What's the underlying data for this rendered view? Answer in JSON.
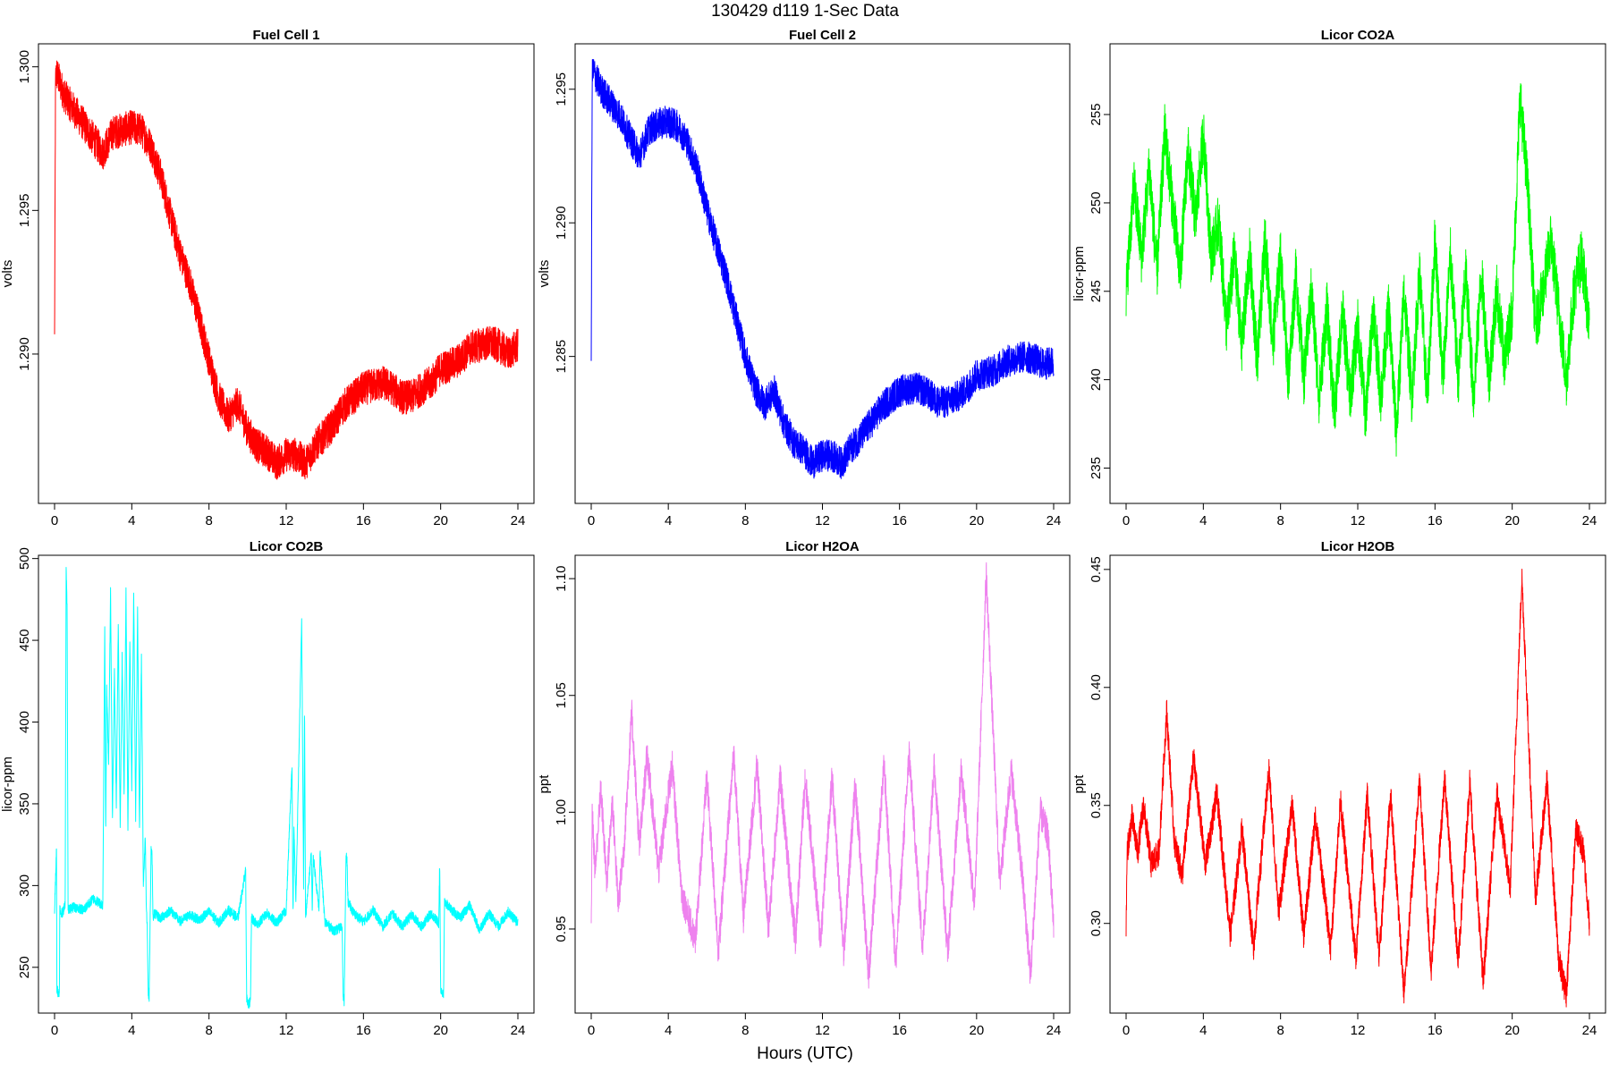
{
  "figure": {
    "title": "130429   d119   1-Sec Data",
    "xlabel": "Hours (UTC)"
  },
  "chart_data": [
    {
      "type": "line",
      "title": "Fuel Cell 1",
      "ylabel": "volts",
      "color": "#ff0000",
      "xlim": [
        0,
        24
      ],
      "xticks": [
        0,
        4,
        8,
        12,
        16,
        20,
        24
      ],
      "ylim": [
        1.2848,
        1.3008
      ],
      "yticks": [
        1.29,
        1.295,
        1.3
      ],
      "ytick_labels": [
        "1.290",
        "1.295",
        "1.300"
      ],
      "noise": 0.0006,
      "series": [
        {
          "x": [
            0,
            0.05,
            0.1,
            0.5,
            1,
            1.5,
            2,
            2.5,
            3,
            3.5,
            4,
            4.5,
            5,
            5.5,
            6,
            6.5,
            7,
            7.5,
            8,
            8.5,
            9,
            9.5,
            10,
            10.5,
            11,
            11.5,
            12,
            12.5,
            13,
            13.5,
            14,
            14.5,
            15,
            15.5,
            16,
            16.5,
            17,
            17.5,
            18,
            18.5,
            19,
            19.5,
            20,
            20.5,
            21,
            21.5,
            22,
            22.5,
            23,
            23.5,
            24
          ],
          "y": [
            1.2905,
            1.2995,
            1.2998,
            1.299,
            1.2985,
            1.298,
            1.2975,
            1.297,
            1.2977,
            1.2978,
            1.2979,
            1.2978,
            1.2972,
            1.2962,
            1.2948,
            1.2935,
            1.2925,
            1.2912,
            1.2898,
            1.2885,
            1.2878,
            1.2883,
            1.2873,
            1.2868,
            1.2866,
            1.2862,
            1.2865,
            1.2865,
            1.2862,
            1.2868,
            1.2872,
            1.2876,
            1.2882,
            1.2885,
            1.2888,
            1.2889,
            1.289,
            1.2888,
            1.2885,
            1.2885,
            1.2888,
            1.289,
            1.2895,
            1.2896,
            1.2898,
            1.2902,
            1.2903,
            1.2904,
            1.2903,
            1.29,
            1.2903
          ]
        }
      ]
    },
    {
      "type": "line",
      "title": "Fuel Cell 2",
      "ylabel": "volts",
      "color": "#0000ff",
      "xlim": [
        0,
        24
      ],
      "xticks": [
        0,
        4,
        8,
        12,
        16,
        20,
        24
      ],
      "ylim": [
        1.2795,
        1.2967
      ],
      "yticks": [
        1.285,
        1.29,
        1.295
      ],
      "ytick_labels": [
        "1.285",
        "1.290",
        "1.295"
      ],
      "noise": 0.0006,
      "series": [
        {
          "x": [
            0,
            0.05,
            0.1,
            0.5,
            1,
            1.5,
            2,
            2.5,
            3,
            3.5,
            4,
            4.5,
            5,
            5.5,
            6,
            6.5,
            7,
            7.5,
            8,
            8.5,
            9,
            9.5,
            10,
            10.5,
            11,
            11.5,
            12,
            12.5,
            13,
            13.5,
            14,
            14.5,
            15,
            15.5,
            16,
            16.5,
            17,
            17.5,
            18,
            18.5,
            19,
            19.5,
            20,
            20.5,
            21,
            21.5,
            22,
            22.5,
            23,
            23.5,
            24
          ],
          "y": [
            1.2848,
            1.2955,
            1.2957,
            1.295,
            1.2945,
            1.294,
            1.2932,
            1.2925,
            1.2935,
            1.2937,
            1.2938,
            1.2936,
            1.293,
            1.292,
            1.2905,
            1.2892,
            1.288,
            1.2865,
            1.285,
            1.2838,
            1.2832,
            1.2837,
            1.2825,
            1.2818,
            1.2815,
            1.281,
            1.2813,
            1.2813,
            1.281,
            1.2816,
            1.282,
            1.2825,
            1.283,
            1.2834,
            1.2837,
            1.2838,
            1.2838,
            1.2836,
            1.2833,
            1.2833,
            1.2835,
            1.2838,
            1.2843,
            1.2844,
            1.2845,
            1.2848,
            1.2849,
            1.285,
            1.2849,
            1.2847,
            1.2848
          ]
        }
      ]
    },
    {
      "type": "line",
      "title": "Licor CO2A",
      "ylabel": "licor-ppm",
      "color": "#00ff00",
      "xlim": [
        0,
        24
      ],
      "xticks": [
        0,
        4,
        8,
        12,
        16,
        20,
        24
      ],
      "ylim": [
        233,
        259
      ],
      "yticks": [
        235,
        240,
        245,
        250,
        255
      ],
      "ytick_labels": [
        "235",
        "240",
        "245",
        "250",
        "255"
      ],
      "noise": 1.6,
      "series": [
        {
          "x": [
            0,
            0.4,
            0.8,
            1.2,
            1.6,
            2,
            2.4,
            2.8,
            3.2,
            3.6,
            4,
            4.4,
            4.8,
            5.2,
            5.6,
            6,
            6.4,
            6.8,
            7.2,
            7.6,
            8,
            8.4,
            8.8,
            9.2,
            9.6,
            10,
            10.4,
            10.8,
            11.2,
            11.6,
            12,
            12.4,
            12.8,
            13.2,
            13.6,
            14,
            14.4,
            14.8,
            15.2,
            15.6,
            16,
            16.4,
            16.8,
            17.2,
            17.6,
            18,
            18.4,
            18.8,
            19.2,
            19.6,
            20,
            20.4,
            20.8,
            21.2,
            21.6,
            22,
            22.4,
            22.8,
            23.2,
            23.6,
            24
          ],
          "y": [
            245,
            251,
            247,
            252,
            246,
            254,
            250,
            246,
            253,
            249,
            254,
            247,
            249,
            243,
            247,
            242,
            247,
            241,
            248,
            242,
            247,
            240,
            246,
            240,
            245,
            239,
            244,
            238,
            244,
            239,
            243,
            238,
            244,
            239,
            244,
            237,
            245,
            239,
            246,
            239,
            248,
            240,
            247,
            240,
            246,
            239,
            246,
            240,
            245,
            241,
            244,
            256,
            251,
            243,
            245,
            248,
            244,
            240,
            245,
            247,
            243
          ]
        }
      ]
    },
    {
      "type": "line",
      "title": "Licor CO2B",
      "ylabel": "licor-ppm",
      "color": "#00ffff",
      "xlim": [
        0,
        24
      ],
      "xticks": [
        0,
        4,
        8,
        12,
        16,
        20,
        24
      ],
      "ylim": [
        222,
        502
      ],
      "yticks": [
        250,
        300,
        350,
        400,
        450,
        500
      ],
      "ytick_labels": [
        "250",
        "300",
        "350",
        "400",
        "450",
        "500"
      ],
      "noise": 3,
      "series": [
        {
          "x": [
            0,
            0.1,
            0.12,
            0.25,
            0.27,
            0.4,
            0.55,
            0.6,
            0.65,
            0.7,
            1,
            1.5,
            2,
            2.5,
            2.6,
            2.65,
            2.7,
            2.8,
            2.9,
            3,
            3.1,
            3.2,
            3.3,
            3.4,
            3.5,
            3.6,
            3.7,
            3.8,
            3.9,
            4,
            4.1,
            4.2,
            4.3,
            4.4,
            4.5,
            4.6,
            4.7,
            4.75,
            4.8,
            4.85,
            4.9,
            5,
            5.05,
            5.1,
            5.15,
            5.5,
            6,
            6.5,
            7,
            7.5,
            8,
            8.5,
            9,
            9.5,
            9.9,
            9.95,
            10.0,
            10.15,
            10.2,
            10.5,
            11,
            11.5,
            12,
            12.3,
            12.35,
            12.4,
            12.5,
            12.8,
            12.9,
            12.95,
            13,
            13.3,
            13.35,
            13.4,
            13.7,
            13.75,
            14,
            14.5,
            14.9,
            14.95,
            15,
            15.1,
            15.15,
            15.2,
            15.5,
            16,
            16.5,
            17,
            17.5,
            18,
            18.5,
            19,
            19.5,
            19.9,
            19.95,
            20.0,
            20.15,
            20.2,
            20.5,
            21,
            21.5,
            22,
            22.5,
            23,
            23.5,
            24
          ],
          "y": [
            285,
            322,
            237,
            232,
            285,
            283,
            288,
            495,
            470,
            285,
            287,
            285,
            292,
            288,
            460,
            330,
            420,
            375,
            480,
            340,
            430,
            350,
            460,
            335,
            440,
            355,
            480,
            335,
            450,
            360,
            480,
            340,
            470,
            335,
            440,
            300,
            330,
            290,
            275,
            235,
            232,
            322,
            318,
            280,
            283,
            280,
            285,
            278,
            282,
            279,
            284,
            277,
            285,
            280,
            310,
            232,
            227,
            229,
            280,
            276,
            283,
            277,
            285,
            375,
            280,
            335,
            290,
            462,
            300,
            410,
            280,
            320,
            285,
            318,
            285,
            321,
            278,
            272,
            275,
            232,
            229,
            318,
            315,
            290,
            283,
            278,
            285,
            275,
            283,
            275,
            282,
            275,
            283,
            277,
            315,
            237,
            232,
            290,
            286,
            280,
            288,
            273,
            283,
            275,
            284,
            277
          ]
        }
      ]
    },
    {
      "type": "line",
      "title": "Licor H2OA",
      "ylabel": "ppt",
      "color": "#ee82ee",
      "xlim": [
        0,
        24
      ],
      "xticks": [
        0,
        4,
        8,
        12,
        16,
        20,
        24
      ],
      "ylim": [
        0.914,
        1.11
      ],
      "yticks": [
        0.95,
        1.0,
        1.05,
        1.1
      ],
      "ytick_labels": [
        "0.95",
        "1.00",
        "1.05",
        "1.10"
      ],
      "noise": 0.007,
      "series": [
        {
          "x": [
            0,
            0.05,
            0.2,
            0.5,
            0.8,
            1.1,
            1.4,
            1.7,
            2.1,
            2.5,
            2.9,
            3.5,
            4.2,
            4.7,
            5.4,
            6,
            6.6,
            7.4,
            7.9,
            8.6,
            9.2,
            9.8,
            10.6,
            11.1,
            11.9,
            12.5,
            13.1,
            13.7,
            14.4,
            15.2,
            15.8,
            16.5,
            17.2,
            17.8,
            18.5,
            19.2,
            19.9,
            20.5,
            21.2,
            21.8,
            22.4,
            22.8,
            23.3,
            23.7,
            24
          ],
          "y": [
            0.953,
            1.0,
            0.975,
            1.01,
            0.97,
            1.005,
            0.96,
            0.985,
            1.042,
            0.985,
            1.025,
            0.975,
            1.02,
            0.965,
            0.945,
            1.015,
            0.94,
            1.025,
            0.955,
            1.02,
            0.95,
            1.015,
            0.945,
            1.015,
            0.945,
            1.015,
            0.94,
            1.012,
            0.93,
            1.02,
            0.935,
            1.025,
            0.942,
            1.02,
            0.94,
            1.018,
            0.96,
            1.102,
            0.97,
            1.018,
            0.97,
            0.93,
            1.0,
            0.99,
            0.953
          ]
        }
      ]
    },
    {
      "type": "line",
      "title": "Licor H2OB",
      "ylabel": "ppt",
      "color": "#ff0000",
      "xlim": [
        0,
        24
      ],
      "xticks": [
        0,
        4,
        8,
        12,
        16,
        20,
        24
      ],
      "ylim": [
        0.262,
        0.456
      ],
      "yticks": [
        0.3,
        0.35,
        0.4,
        0.45
      ],
      "ytick_labels": [
        "0.30",
        "0.35",
        "0.40",
        "0.45"
      ],
      "noise": 0.006,
      "series": [
        {
          "x": [
            0,
            0.05,
            0.3,
            0.6,
            0.9,
            1.3,
            1.7,
            2.1,
            2.5,
            2.9,
            3.5,
            4.1,
            4.7,
            5.4,
            6,
            6.6,
            7.4,
            7.9,
            8.6,
            9.2,
            9.8,
            10.6,
            11.1,
            11.9,
            12.5,
            13.1,
            13.7,
            14.4,
            15.2,
            15.8,
            16.5,
            17.2,
            17.8,
            18.5,
            19.2,
            19.9,
            20.5,
            21.2,
            21.8,
            22.4,
            22.8,
            23.3,
            23.7,
            24
          ],
          "y": [
            0.295,
            0.33,
            0.345,
            0.33,
            0.35,
            0.325,
            0.33,
            0.39,
            0.335,
            0.32,
            0.37,
            0.325,
            0.355,
            0.295,
            0.34,
            0.29,
            0.365,
            0.305,
            0.35,
            0.295,
            0.345,
            0.29,
            0.352,
            0.285,
            0.355,
            0.285,
            0.355,
            0.27,
            0.36,
            0.28,
            0.362,
            0.283,
            0.36,
            0.275,
            0.355,
            0.315,
            0.447,
            0.31,
            0.36,
            0.285,
            0.27,
            0.34,
            0.33,
            0.3
          ]
        }
      ]
    }
  ]
}
